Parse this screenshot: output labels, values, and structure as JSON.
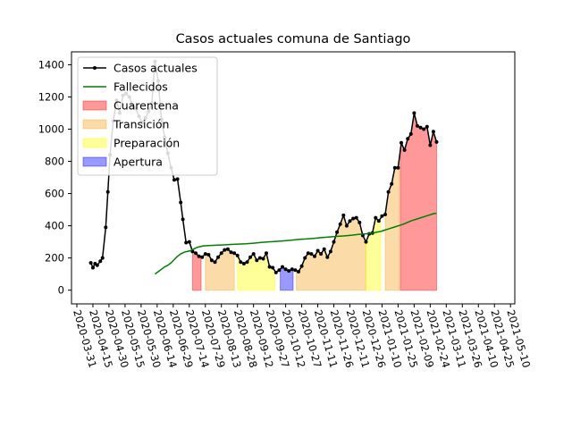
{
  "chart_data": {
    "type": "line",
    "title": "Casos actuales comuna de Santiago",
    "xlabel": "",
    "ylabel": "",
    "x_axis": {
      "type": "date",
      "range": [
        "2020-03-26",
        "2021-05-14"
      ],
      "ticks": [
        "2020-03-31",
        "2020-04-15",
        "2020-04-30",
        "2020-05-15",
        "2020-05-30",
        "2020-06-14",
        "2020-06-29",
        "2020-07-14",
        "2020-07-29",
        "2020-08-13",
        "2020-08-28",
        "2020-09-12",
        "2020-09-27",
        "2020-10-12",
        "2020-10-27",
        "2020-11-11",
        "2020-11-26",
        "2020-12-11",
        "2020-12-26",
        "2021-01-10",
        "2021-01-25",
        "2021-02-09",
        "2021-02-24",
        "2021-03-11",
        "2021-03-26",
        "2021-04-10",
        "2021-04-25",
        "2021-05-10"
      ]
    },
    "y_axis": {
      "range": [
        -85,
        1480
      ],
      "ticks": [
        0,
        200,
        400,
        600,
        800,
        1000,
        1200,
        1400
      ]
    },
    "legend": {
      "position": "top-left",
      "entries": [
        {
          "label": "Casos actuales",
          "kind": "line-marker",
          "color": "#000000"
        },
        {
          "label": "Fallecidos",
          "kind": "line",
          "color": "#008000"
        },
        {
          "label": "Cuarentena",
          "kind": "patch",
          "color": "#ff0000"
        },
        {
          "label": "Transición",
          "kind": "patch",
          "color": "#f5a623"
        },
        {
          "label": "Preparación",
          "kind": "patch",
          "color": "#ffff00"
        },
        {
          "label": "Apertura",
          "kind": "patch",
          "color": "#0000ff"
        }
      ]
    },
    "series": [
      {
        "name": "Casos actuales",
        "color": "#000000",
        "marker": "dot",
        "points": [
          [
            "2020-04-13",
            170
          ],
          [
            "2020-04-15",
            140
          ],
          [
            "2020-04-17",
            165
          ],
          [
            "2020-04-19",
            155
          ],
          [
            "2020-04-22",
            180
          ],
          [
            "2020-04-24",
            200
          ],
          [
            "2020-04-27",
            390
          ],
          [
            "2020-04-29",
            610
          ],
          [
            "2020-05-01",
            840
          ],
          [
            "2020-05-04",
            1050
          ],
          [
            "2020-05-07",
            1180
          ],
          [
            "2020-05-10",
            1100
          ],
          [
            "2020-05-13",
            1210
          ],
          [
            "2020-05-16",
            1220
          ],
          [
            "2020-05-19",
            1200
          ],
          [
            "2020-05-22",
            1150
          ],
          [
            "2020-05-25",
            1130
          ],
          [
            "2020-05-28",
            1080
          ],
          [
            "2020-05-31",
            1040
          ],
          [
            "2020-06-03",
            1070
          ],
          [
            "2020-06-06",
            1110
          ],
          [
            "2020-06-09",
            1160
          ],
          [
            "2020-06-12",
            1420
          ],
          [
            "2020-06-15",
            1300
          ],
          [
            "2020-06-18",
            1060
          ],
          [
            "2020-06-21",
            950
          ],
          [
            "2020-06-24",
            850
          ],
          [
            "2020-06-27",
            760
          ],
          [
            "2020-06-30",
            685
          ],
          [
            "2020-07-03",
            690
          ],
          [
            "2020-07-06",
            545
          ],
          [
            "2020-07-08",
            440
          ],
          [
            "2020-07-11",
            295
          ],
          [
            "2020-07-14",
            300
          ],
          [
            "2020-07-17",
            240
          ],
          [
            "2020-07-20",
            230
          ],
          [
            "2020-07-23",
            210
          ],
          [
            "2020-07-26",
            205
          ],
          [
            "2020-07-29",
            225
          ],
          [
            "2020-08-01",
            220
          ],
          [
            "2020-08-04",
            185
          ],
          [
            "2020-08-07",
            175
          ],
          [
            "2020-08-10",
            205
          ],
          [
            "2020-08-13",
            230
          ],
          [
            "2020-08-16",
            250
          ],
          [
            "2020-08-19",
            255
          ],
          [
            "2020-08-22",
            235
          ],
          [
            "2020-08-25",
            230
          ],
          [
            "2020-08-28",
            215
          ],
          [
            "2020-08-31",
            175
          ],
          [
            "2020-09-03",
            165
          ],
          [
            "2020-09-06",
            175
          ],
          [
            "2020-09-09",
            205
          ],
          [
            "2020-09-12",
            225
          ],
          [
            "2020-09-15",
            185
          ],
          [
            "2020-09-18",
            200
          ],
          [
            "2020-09-21",
            195
          ],
          [
            "2020-09-24",
            230
          ],
          [
            "2020-09-27",
            145
          ],
          [
            "2020-09-30",
            140
          ],
          [
            "2020-10-03",
            110
          ],
          [
            "2020-10-06",
            125
          ],
          [
            "2020-10-09",
            145
          ],
          [
            "2020-10-12",
            130
          ],
          [
            "2020-10-15",
            120
          ],
          [
            "2020-10-18",
            130
          ],
          [
            "2020-10-21",
            125
          ],
          [
            "2020-10-24",
            115
          ],
          [
            "2020-10-27",
            150
          ],
          [
            "2020-10-30",
            200
          ],
          [
            "2020-11-02",
            230
          ],
          [
            "2020-11-05",
            225
          ],
          [
            "2020-11-08",
            210
          ],
          [
            "2020-11-11",
            245
          ],
          [
            "2020-11-14",
            225
          ],
          [
            "2020-11-17",
            255
          ],
          [
            "2020-11-20",
            205
          ],
          [
            "2020-11-23",
            240
          ],
          [
            "2020-11-26",
            300
          ],
          [
            "2020-11-29",
            360
          ],
          [
            "2020-12-02",
            410
          ],
          [
            "2020-12-05",
            465
          ],
          [
            "2020-12-08",
            400
          ],
          [
            "2020-12-11",
            430
          ],
          [
            "2020-12-14",
            445
          ],
          [
            "2020-12-17",
            450
          ],
          [
            "2020-12-20",
            420
          ],
          [
            "2020-12-23",
            340
          ],
          [
            "2020-12-26",
            300
          ],
          [
            "2020-12-29",
            350
          ],
          [
            "2021-01-01",
            355
          ],
          [
            "2021-01-04",
            450
          ],
          [
            "2021-01-07",
            430
          ],
          [
            "2021-01-10",
            460
          ],
          [
            "2021-01-13",
            470
          ],
          [
            "2021-01-16",
            610
          ],
          [
            "2021-01-19",
            660
          ],
          [
            "2021-01-22",
            760
          ],
          [
            "2021-01-25",
            760
          ],
          [
            "2021-01-28",
            915
          ],
          [
            "2021-01-31",
            870
          ],
          [
            "2021-02-03",
            940
          ],
          [
            "2021-02-06",
            970
          ],
          [
            "2021-02-09",
            1100
          ],
          [
            "2021-02-12",
            1020
          ],
          [
            "2021-02-15",
            1010
          ],
          [
            "2021-02-18",
            1000
          ],
          [
            "2021-02-21",
            1015
          ],
          [
            "2021-02-24",
            900
          ],
          [
            "2021-02-27",
            985
          ],
          [
            "2021-03-02",
            920
          ]
        ]
      },
      {
        "name": "Fallecidos",
        "color": "#008000",
        "points": [
          [
            "2020-06-12",
            100
          ],
          [
            "2020-06-15",
            115
          ],
          [
            "2020-06-18",
            130
          ],
          [
            "2020-06-21",
            145
          ],
          [
            "2020-06-24",
            155
          ],
          [
            "2020-06-27",
            170
          ],
          [
            "2020-06-30",
            190
          ],
          [
            "2020-07-03",
            210
          ],
          [
            "2020-07-06",
            225
          ],
          [
            "2020-07-09",
            235
          ],
          [
            "2020-07-12",
            240
          ],
          [
            "2020-07-15",
            245
          ],
          [
            "2020-07-18",
            255
          ],
          [
            "2020-07-21",
            265
          ],
          [
            "2020-07-24",
            270
          ],
          [
            "2020-07-27",
            275
          ],
          [
            "2020-08-01",
            277
          ],
          [
            "2020-08-08",
            279
          ],
          [
            "2020-08-15",
            281
          ],
          [
            "2020-08-22",
            284
          ],
          [
            "2020-08-29",
            286
          ],
          [
            "2020-09-05",
            288
          ],
          [
            "2020-09-12",
            292
          ],
          [
            "2020-09-19",
            296
          ],
          [
            "2020-09-26",
            300
          ],
          [
            "2020-10-03",
            303
          ],
          [
            "2020-10-10",
            306
          ],
          [
            "2020-10-17",
            310
          ],
          [
            "2020-10-24",
            315
          ],
          [
            "2020-10-31",
            318
          ],
          [
            "2020-11-07",
            322
          ],
          [
            "2020-11-14",
            326
          ],
          [
            "2020-11-21",
            330
          ],
          [
            "2020-11-28",
            334
          ],
          [
            "2020-12-05",
            337
          ],
          [
            "2020-12-12",
            341
          ],
          [
            "2020-12-19",
            346
          ],
          [
            "2020-12-26",
            350
          ],
          [
            "2021-01-02",
            356
          ],
          [
            "2021-01-09",
            365
          ],
          [
            "2021-01-16",
            380
          ],
          [
            "2021-01-23",
            395
          ],
          [
            "2021-01-30",
            410
          ],
          [
            "2021-02-06",
            430
          ],
          [
            "2021-02-13",
            445
          ],
          [
            "2021-02-20",
            460
          ],
          [
            "2021-02-27",
            475
          ],
          [
            "2021-03-02",
            478
          ]
        ]
      }
    ],
    "phases": [
      {
        "label": "Cuarentena",
        "color": "#ff0000",
        "start": "2020-07-17",
        "end": "2020-07-25",
        "mode": "fill-under"
      },
      {
        "label": "Transición",
        "color": "#f5a623",
        "start": "2020-07-29",
        "end": "2020-08-25",
        "mode": "fill-under"
      },
      {
        "label": "Preparación",
        "color": "#ffff00",
        "start": "2020-08-28",
        "end": "2020-10-02",
        "mode": "fill-under"
      },
      {
        "label": "Apertura",
        "color": "#0000ff",
        "start": "2020-10-07",
        "end": "2020-10-19",
        "mode": "fill-under"
      },
      {
        "label": "Transición",
        "color": "#f5a623",
        "start": "2020-10-22",
        "end": "2020-12-26",
        "mode": "fill-under"
      },
      {
        "label": "Preparación",
        "color": "#ffff00",
        "start": "2020-12-26",
        "end": "2021-01-09",
        "mode": "fill-under"
      },
      {
        "label": "Transición",
        "color": "#f5a623",
        "start": "2021-01-13",
        "end": "2021-01-26",
        "mode": "fill-under"
      },
      {
        "label": "Cuarentena",
        "color": "#ff0000",
        "start": "2021-01-27",
        "end": "2021-03-02",
        "mode": "fill-under"
      }
    ]
  }
}
